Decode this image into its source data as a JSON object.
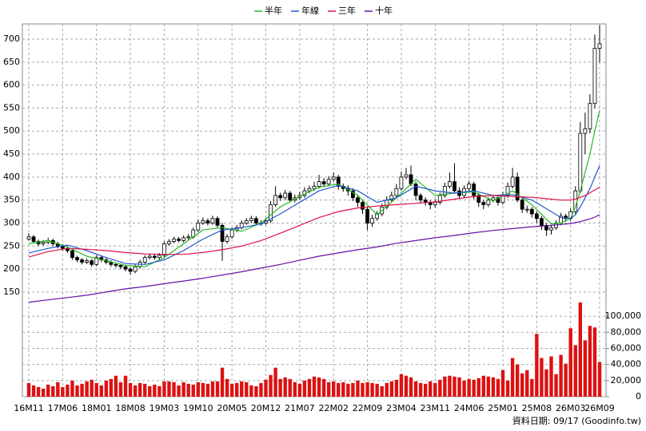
{
  "chart_data": {
    "type": "candlestick",
    "categories": [
      "16M11",
      null,
      null,
      null,
      null,
      null,
      null,
      "17M06",
      null,
      null,
      null,
      null,
      null,
      null,
      "18M01",
      null,
      null,
      null,
      null,
      null,
      null,
      "18M08",
      null,
      null,
      null,
      null,
      null,
      null,
      "19M03",
      null,
      null,
      null,
      null,
      null,
      null,
      "19M10",
      null,
      null,
      null,
      null,
      null,
      null,
      "20M05",
      null,
      null,
      null,
      null,
      null,
      null,
      "20M12",
      null,
      null,
      null,
      null,
      null,
      null,
      "21M07",
      null,
      null,
      null,
      null,
      null,
      null,
      "22M02",
      null,
      null,
      null,
      null,
      null,
      null,
      "22M09",
      null,
      null,
      null,
      null,
      null,
      null,
      "23M04",
      null,
      null,
      null,
      null,
      null,
      null,
      "23M11",
      null,
      null,
      null,
      null,
      null,
      null,
      "24M06",
      null,
      null,
      null,
      null,
      null,
      null,
      "25M01",
      null,
      null,
      null,
      null,
      null,
      null,
      "25M08",
      null,
      null,
      null,
      null,
      null,
      null,
      "26M03",
      null,
      null,
      null,
      null,
      null,
      "26M09"
    ],
    "open": [
      265,
      270,
      260,
      255,
      258,
      262,
      255,
      250,
      245,
      240,
      225,
      220,
      215,
      218,
      210,
      225,
      220,
      215,
      210,
      208,
      205,
      200,
      195,
      205,
      215,
      225,
      228,
      225,
      230,
      255,
      260,
      265,
      262,
      268,
      270,
      285,
      300,
      305,
      300,
      310,
      295,
      260,
      270,
      285,
      290,
      300,
      305,
      310,
      300,
      300,
      305,
      340,
      360,
      355,
      365,
      350,
      355,
      360,
      370,
      375,
      380,
      390,
      385,
      395,
      400,
      380,
      375,
      370,
      355,
      345,
      330,
      300,
      310,
      320,
      335,
      350,
      360,
      375,
      400,
      405,
      385,
      360,
      350,
      345,
      340,
      345,
      360,
      380,
      390,
      370,
      360,
      375,
      385,
      360,
      345,
      340,
      350,
      355,
      345,
      360,
      380,
      400,
      350,
      330,
      330,
      320,
      310,
      295,
      285,
      290,
      300,
      315,
      310,
      325,
      370,
      495,
      505,
      560,
      680
    ],
    "high": [
      278,
      274,
      264,
      263,
      268,
      266,
      259,
      254,
      249,
      244,
      229,
      224,
      223,
      222,
      230,
      229,
      224,
      219,
      214,
      212,
      209,
      204,
      210,
      220,
      230,
      233,
      232,
      235,
      260,
      265,
      270,
      270,
      273,
      276,
      290,
      308,
      312,
      310,
      316,
      315,
      300,
      276,
      290,
      296,
      306,
      311,
      316,
      315,
      306,
      311,
      348,
      380,
      366,
      372,
      370,
      362,
      368,
      378,
      382,
      390,
      405,
      398,
      402,
      410,
      405,
      386,
      382,
      376,
      362,
      350,
      335,
      318,
      326,
      342,
      358,
      368,
      385,
      412,
      420,
      425,
      390,
      365,
      356,
      350,
      352,
      366,
      388,
      410,
      430,
      378,
      382,
      392,
      390,
      365,
      350,
      356,
      360,
      360,
      368,
      388,
      420,
      410,
      355,
      338,
      335,
      325,
      315,
      300,
      296,
      306,
      322,
      320,
      332,
      380,
      520,
      540,
      580,
      710,
      730
    ],
    "low": [
      262,
      256,
      250,
      251,
      254,
      250,
      245,
      240,
      235,
      220,
      215,
      210,
      211,
      205,
      206,
      215,
      210,
      205,
      203,
      200,
      195,
      188,
      191,
      201,
      211,
      221,
      220,
      221,
      226,
      251,
      256,
      258,
      258,
      264,
      266,
      281,
      296,
      295,
      296,
      290,
      218,
      255,
      266,
      280,
      286,
      296,
      300,
      295,
      294,
      296,
      300,
      335,
      348,
      350,
      345,
      345,
      350,
      355,
      365,
      370,
      375,
      378,
      380,
      390,
      372,
      368,
      360,
      348,
      335,
      320,
      285,
      292,
      305,
      315,
      330,
      345,
      355,
      370,
      395,
      380,
      350,
      342,
      338,
      330,
      334,
      340,
      355,
      375,
      365,
      352,
      355,
      370,
      352,
      335,
      330,
      335,
      345,
      338,
      340,
      355,
      375,
      345,
      322,
      322,
      312,
      300,
      285,
      272,
      275,
      285,
      295,
      303,
      305,
      320,
      365,
      450,
      495,
      550,
      650
    ],
    "close": [
      270,
      260,
      255,
      258,
      262,
      255,
      250,
      245,
      240,
      225,
      220,
      215,
      218,
      210,
      225,
      220,
      215,
      210,
      208,
      205,
      200,
      195,
      205,
      215,
      225,
      228,
      225,
      230,
      255,
      260,
      265,
      262,
      268,
      270,
      285,
      300,
      305,
      300,
      310,
      295,
      260,
      270,
      285,
      290,
      300,
      305,
      310,
      300,
      300,
      305,
      340,
      360,
      355,
      365,
      350,
      355,
      360,
      370,
      375,
      380,
      390,
      385,
      395,
      400,
      380,
      375,
      370,
      355,
      345,
      330,
      300,
      310,
      320,
      335,
      350,
      360,
      375,
      400,
      405,
      385,
      360,
      350,
      345,
      340,
      345,
      360,
      380,
      390,
      370,
      360,
      375,
      385,
      360,
      345,
      340,
      350,
      355,
      345,
      360,
      380,
      400,
      350,
      330,
      330,
      320,
      310,
      295,
      285,
      290,
      300,
      315,
      310,
      325,
      370,
      495,
      505,
      560,
      680,
      690
    ],
    "up_color": "#ffffff",
    "down_color": "#000000",
    "volume": [
      17000,
      14000,
      12000,
      10000,
      15000,
      13000,
      18000,
      12000,
      15000,
      20000,
      14000,
      16000,
      19000,
      21000,
      17000,
      14000,
      20000,
      22000,
      26000,
      18000,
      26000,
      17000,
      14000,
      17000,
      16000,
      13000,
      15000,
      13000,
      19000,
      19000,
      18000,
      14000,
      18000,
      16000,
      15000,
      18000,
      17000,
      16000,
      19000,
      19000,
      36000,
      22000,
      16000,
      17000,
      19000,
      18000,
      14000,
      13000,
      17000,
      21000,
      27000,
      36000,
      22000,
      24000,
      22000,
      18000,
      16000,
      20000,
      22000,
      25000,
      24000,
      22000,
      18000,
      19000,
      17000,
      18000,
      16000,
      17000,
      20000,
      17000,
      18000,
      17000,
      16000,
      13000,
      17000,
      19000,
      21000,
      28000,
      26000,
      24000,
      19000,
      17000,
      16000,
      19000,
      17000,
      21000,
      25000,
      26000,
      25000,
      24000,
      20000,
      22000,
      21000,
      23000,
      26000,
      25000,
      24000,
      22000,
      33000,
      20000,
      48000,
      40000,
      29000,
      33000,
      22000,
      78000,
      48000,
      34000,
      50000,
      28000,
      52000,
      41000,
      85000,
      64000,
      117000,
      70000,
      88000,
      86000,
      43000
    ],
    "volume_color": "#dd1111",
    "series": [
      {
        "name": "半年",
        "color": "#22bb22",
        "x": [
          0,
          4,
          8,
          12,
          16,
          20,
          24,
          28,
          32,
          36,
          40,
          44,
          48,
          52,
          56,
          60,
          64,
          68,
          72,
          76,
          80,
          84,
          88,
          92,
          96,
          100,
          104,
          108,
          110,
          112,
          113,
          114,
          115,
          116,
          117,
          118
        ],
        "values": [
          255,
          262,
          248,
          228,
          218,
          208,
          205,
          225,
          255,
          285,
          290,
          282,
          300,
          335,
          358,
          378,
          385,
          360,
          318,
          355,
          395,
          360,
          365,
          368,
          348,
          370,
          340,
          298,
          300,
          310,
          335,
          370,
          410,
          450,
          500,
          545
        ]
      },
      {
        "name": "年線",
        "color": "#2255cc",
        "x": [
          0,
          4,
          8,
          12,
          16,
          20,
          24,
          28,
          32,
          36,
          40,
          44,
          48,
          52,
          56,
          60,
          64,
          68,
          72,
          76,
          80,
          84,
          88,
          92,
          96,
          100,
          104,
          108,
          110,
          112,
          113,
          114,
          115,
          116,
          117,
          118
        ],
        "values": [
          235,
          245,
          252,
          240,
          225,
          212,
          210,
          220,
          240,
          265,
          285,
          290,
          298,
          320,
          345,
          370,
          382,
          370,
          345,
          355,
          380,
          370,
          365,
          370,
          360,
          362,
          350,
          325,
          312,
          310,
          318,
          335,
          355,
          375,
          400,
          425
        ]
      },
      {
        "name": "三年",
        "color": "#dd1144",
        "x": [
          0,
          4,
          8,
          12,
          16,
          20,
          24,
          28,
          32,
          36,
          40,
          44,
          48,
          52,
          56,
          60,
          64,
          68,
          72,
          76,
          80,
          84,
          88,
          92,
          96,
          100,
          104,
          108,
          110,
          112,
          113,
          114,
          115,
          116,
          117,
          118
        ],
        "values": [
          226,
          238,
          245,
          243,
          240,
          236,
          233,
          232,
          232,
          236,
          242,
          250,
          262,
          278,
          295,
          312,
          325,
          333,
          337,
          340,
          343,
          346,
          352,
          358,
          360,
          358,
          356,
          352,
          350,
          350,
          352,
          356,
          360,
          366,
          372,
          378
        ]
      },
      {
        "name": "十年",
        "color": "#6611aa",
        "x": [
          0,
          4,
          8,
          12,
          16,
          20,
          24,
          28,
          32,
          36,
          40,
          44,
          48,
          52,
          56,
          60,
          64,
          68,
          72,
          76,
          80,
          84,
          88,
          92,
          96,
          100,
          104,
          108,
          110,
          112,
          113,
          114,
          115,
          116,
          117,
          118
        ],
        "values": [
          128,
          133,
          138,
          143,
          150,
          157,
          162,
          168,
          174,
          180,
          187,
          194,
          202,
          210,
          219,
          228,
          235,
          242,
          248,
          256,
          262,
          268,
          273,
          279,
          284,
          288,
          292,
          295,
          297,
          299,
          301,
          303,
          306,
          309,
          313,
          318
        ]
      }
    ],
    "ylim": [
      129,
      733
    ],
    "yticks": [
      150,
      200,
      250,
      300,
      350,
      400,
      450,
      500,
      550,
      600,
      650,
      700
    ],
    "y2lim": [
      0,
      118000
    ],
    "y2ticks": [
      0,
      {
        "value": 20000,
        "label": "20,000"
      },
      {
        "value": 40000,
        "label": "40,000"
      },
      {
        "value": 60000,
        "label": "60,000"
      },
      {
        "value": 80000,
        "label": "80,000"
      },
      {
        "value": 100000,
        "label": "100,000"
      }
    ],
    "grid": true,
    "footnote": "資料日期: 09/17  (Goodinfo.tw)"
  }
}
